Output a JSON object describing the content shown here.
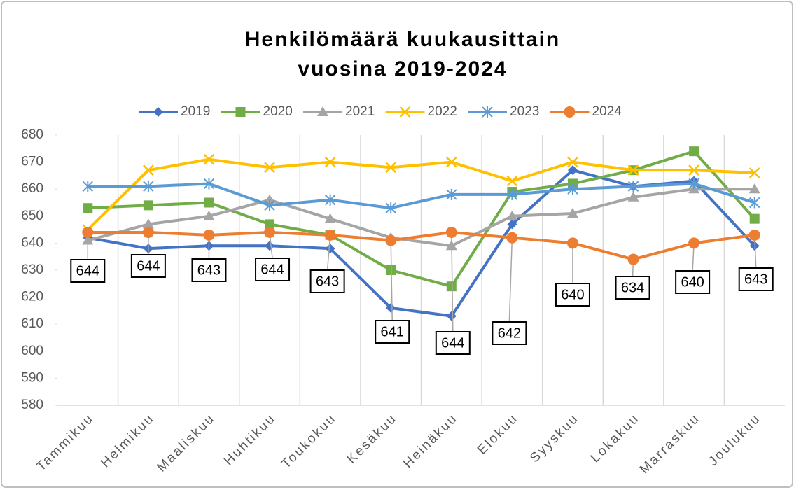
{
  "chart_data": {
    "type": "line",
    "title": [
      "Henkilömäärä kuukausittain",
      "vuosina 2019-2024"
    ],
    "categories": [
      "Tammikuu",
      "Helmikuu",
      "Maaliskuu",
      "Huhtikuu",
      "Toukokuu",
      "Kesäkuu",
      "Heinäkuu",
      "Elokuu",
      "Syyskuu",
      "Lokakuu",
      "Marraskuu",
      "Joulukuu"
    ],
    "series": [
      {
        "name": "2019",
        "color": "#4472c4",
        "marker": "diamond",
        "values": [
          642,
          638,
          639,
          639,
          638,
          616,
          613,
          647,
          667,
          661,
          663,
          639
        ]
      },
      {
        "name": "2020",
        "color": "#70ad47",
        "marker": "square",
        "values": [
          653,
          654,
          655,
          647,
          643,
          630,
          624,
          659,
          662,
          667,
          674,
          649
        ]
      },
      {
        "name": "2021",
        "color": "#a5a5a5",
        "marker": "triangle",
        "values": [
          641,
          647,
          650,
          656,
          649,
          642,
          639,
          650,
          651,
          657,
          660,
          660
        ]
      },
      {
        "name": "2022",
        "color": "#ffc000",
        "marker": "x",
        "values": [
          645,
          667,
          671,
          668,
          670,
          668,
          670,
          663,
          670,
          667,
          667,
          666
        ]
      },
      {
        "name": "2023",
        "color": "#5b9bd5",
        "marker": "asterisk",
        "values": [
          661,
          661,
          662,
          654,
          656,
          653,
          658,
          658,
          660,
          661,
          662,
          655
        ]
      },
      {
        "name": "2024",
        "color": "#ed7d31",
        "marker": "circle",
        "data_labels": true,
        "values": [
          644,
          644,
          643,
          644,
          643,
          641,
          644,
          642,
          640,
          634,
          640,
          643
        ]
      }
    ],
    "ylim": [
      580,
      680
    ],
    "yticks": [
      580,
      590,
      600,
      610,
      620,
      630,
      640,
      650,
      660,
      670,
      680
    ],
    "grid": "vertical",
    "legend": "top"
  }
}
